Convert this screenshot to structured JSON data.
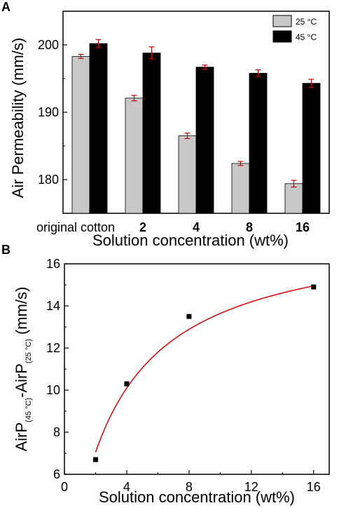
{
  "panel_a": {
    "letter": "A",
    "legend": [
      "25 °C",
      "45 °C"
    ]
  },
  "panel_b": {
    "letter": "B",
    "ylabel_main": "AirP",
    "ylabel_sub1": "(45 °C)",
    "ylabel_mid": "-AirP",
    "ylabel_sub2": "(25 °C)",
    "ylabel_unit": "(mm/s)"
  },
  "colors": {
    "series_25": "#c8c8c8",
    "series_45": "#000000",
    "error_bar": "#cc0000",
    "fit_curve": "#e00000",
    "points": "#000000"
  },
  "chart_data": [
    {
      "type": "bar",
      "categories": [
        "original cotton",
        "2",
        "4",
        "8",
        "16"
      ],
      "series": [
        {
          "name": "25 °C",
          "values": [
            198.3,
            192.1,
            186.5,
            182.4,
            179.4
          ],
          "errors": [
            0.3,
            0.4,
            0.4,
            0.3,
            0.5
          ]
        },
        {
          "name": "45 °C",
          "values": [
            200.2,
            198.8,
            196.7,
            195.8,
            194.3
          ],
          "errors": [
            0.6,
            0.9,
            0.3,
            0.5,
            0.6
          ]
        }
      ],
      "ylabel": "Air Permeability (mm/s)",
      "xlabel": "Solution concentration (wt%)",
      "ylim": [
        175,
        205
      ],
      "yticks": [
        180,
        190,
        200
      ],
      "legend_position": "top-right"
    },
    {
      "type": "scatter",
      "x": [
        2,
        4,
        8,
        16
      ],
      "y": [
        6.7,
        10.3,
        13.5,
        14.9
      ],
      "fit_curve": true,
      "xlabel": "Solution concentration (wt%)",
      "ylabel": "AirP(45 °C)-AirP(25 °C) (mm/s)",
      "xlim": [
        0,
        17
      ],
      "ylim": [
        6,
        16
      ],
      "xticks": [
        0,
        4,
        8,
        12,
        16
      ],
      "yticks": [
        6,
        8,
        10,
        12,
        14,
        16
      ]
    }
  ]
}
